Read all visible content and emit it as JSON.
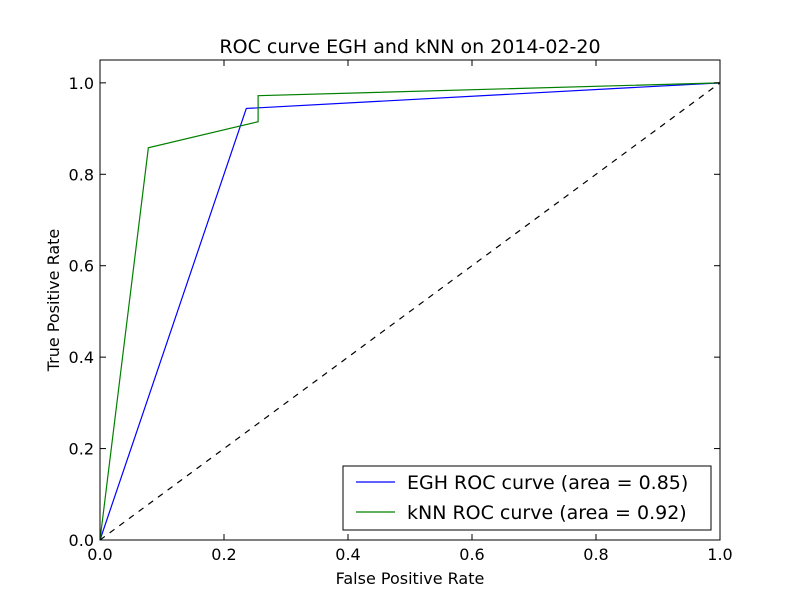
{
  "chart_data": {
    "type": "line",
    "title": "ROC curve EGH and kNN on 2014-02-20",
    "xlabel": "False Positive Rate",
    "ylabel": "True Positive Rate",
    "xlim": [
      0.0,
      1.0
    ],
    "ylim": [
      0.0,
      1.05
    ],
    "xticks": [
      0.0,
      0.2,
      0.4,
      0.6,
      0.8,
      1.0
    ],
    "yticks": [
      0.0,
      0.2,
      0.4,
      0.6,
      0.8,
      1.0
    ],
    "xtick_labels": [
      "0.0",
      "0.2",
      "0.4",
      "0.6",
      "0.8",
      "1.0"
    ],
    "ytick_labels": [
      "0.0",
      "0.2",
      "0.4",
      "0.6",
      "0.8",
      "1.0"
    ],
    "grid": false,
    "legend_position": "lower-right",
    "series": [
      {
        "name": "EGH ROC curve (area = 0.85)",
        "color": "#0000ff",
        "x": [
          0.0,
          0.236,
          1.0
        ],
        "y": [
          0.0,
          0.944,
          1.0
        ]
      },
      {
        "name": "kNN ROC curve (area = 0.92)",
        "color": "#008000",
        "x": [
          0.0,
          0.078,
          0.255,
          0.255,
          1.0
        ],
        "y": [
          0.0,
          0.858,
          0.915,
          0.972,
          1.0
        ]
      }
    ],
    "reference_line": {
      "color": "#000000",
      "style": "dashed",
      "x": [
        0.0,
        1.0
      ],
      "y": [
        0.0,
        1.0
      ]
    }
  }
}
